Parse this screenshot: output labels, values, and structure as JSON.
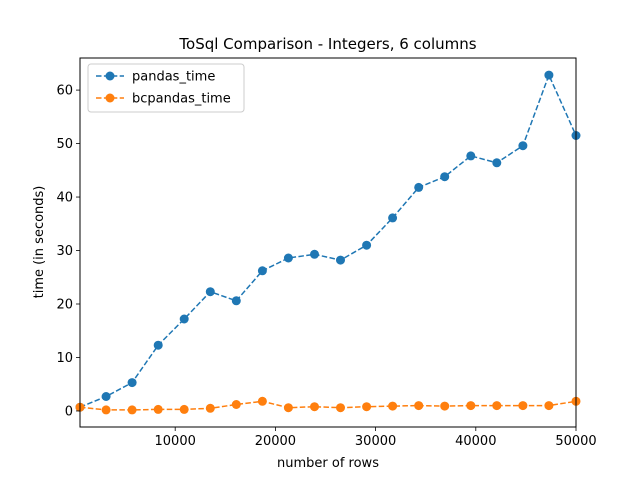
{
  "chart_data": {
    "type": "line",
    "title": "ToSql Comparison - Integers, 6 columns",
    "xlabel": "number of rows",
    "ylabel": "time (in seconds)",
    "xlim": [
      500,
      50000
    ],
    "ylim": [
      -3,
      66
    ],
    "xticks": [
      10000,
      20000,
      30000,
      40000,
      50000
    ],
    "xtick_labels": [
      "10000",
      "20000",
      "30000",
      "40000",
      "50000"
    ],
    "yticks": [
      0,
      10,
      20,
      30,
      40,
      50,
      60
    ],
    "ytick_labels": [
      "0",
      "10",
      "20",
      "30",
      "40",
      "50",
      "60"
    ],
    "grid": false,
    "legend_position": "top-left",
    "x": [
      500,
      3100,
      5700,
      8300,
      10900,
      13500,
      16100,
      18700,
      21300,
      23900,
      26500,
      29100,
      31700,
      34300,
      36900,
      39500,
      42100,
      44700,
      47300,
      50000
    ],
    "series": [
      {
        "name": "pandas_time",
        "color": "#1f77b4",
        "values": [
          0.7,
          2.7,
          5.3,
          12.3,
          17.2,
          22.3,
          20.6,
          26.2,
          28.6,
          29.3,
          28.2,
          31.0,
          36.1,
          41.8,
          43.8,
          47.7,
          46.4,
          49.6,
          62.8,
          51.5
        ]
      },
      {
        "name": "bcpandas_time",
        "color": "#ff7f0e",
        "values": [
          0.7,
          0.2,
          0.2,
          0.3,
          0.3,
          0.5,
          1.2,
          1.8,
          0.6,
          0.8,
          0.6,
          0.8,
          0.9,
          1.0,
          0.9,
          1.0,
          1.0,
          1.0,
          1.0,
          1.8
        ]
      }
    ]
  }
}
